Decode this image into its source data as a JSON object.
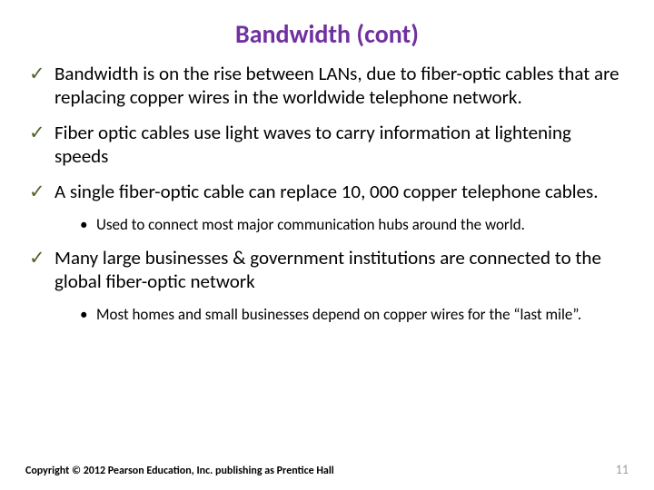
{
  "colors": {
    "title": "#7030a0",
    "check": "#4f6228",
    "body": "#000000",
    "sub": "#000000",
    "page_num": "#9b9b9b",
    "copyright": "#000000",
    "background": "#ffffff"
  },
  "fonts": {
    "title_size": 28,
    "body_size": 21,
    "sub_size": 17,
    "footer_size": 12,
    "pagenum_size": 14
  },
  "title": "Bandwidth (cont)",
  "bullets": [
    {
      "text": "Bandwidth is on the rise between LANs, due to fiber-optic cables that are replacing copper wires in the worldwide telephone network.",
      "subs": []
    },
    {
      "text": "Fiber optic cables use light waves to carry information at lightening speeds",
      "subs": []
    },
    {
      "text": "A single fiber-optic cable can replace 10, 000 copper telephone cables.",
      "subs": [
        "Used to connect most major communication hubs around the world."
      ]
    },
    {
      "text": "Many large businesses & government institutions are connected to the global fiber-optic network",
      "subs": [
        "Most homes and small businesses depend on copper wires for the “last mile”."
      ]
    }
  ],
  "footer": {
    "copyright": "Copyright © 2012 Pearson Education, Inc. publishing as Prentice Hall",
    "page": "11"
  }
}
